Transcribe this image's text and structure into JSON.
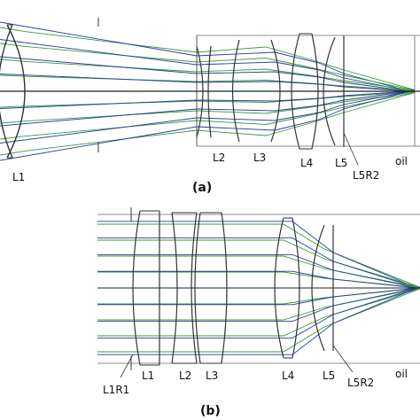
{
  "panel_a": {
    "lens_labels": [
      "L1",
      "L2",
      "L3",
      "L4",
      "L5",
      "oil"
    ],
    "surface_label": "L5R2",
    "caption": "(a)"
  },
  "panel_b": {
    "lens_labels": [
      "L1",
      "L2",
      "L3",
      "L4",
      "L5",
      "oil"
    ],
    "surface_labels": [
      "L1R1",
      "L5R2"
    ],
    "caption": "(b)"
  },
  "colors": {
    "ray_green": "#3a9a3a",
    "ray_blue": "#2a3f9e",
    "lens_outline": "#333333",
    "axis": "#222222"
  }
}
